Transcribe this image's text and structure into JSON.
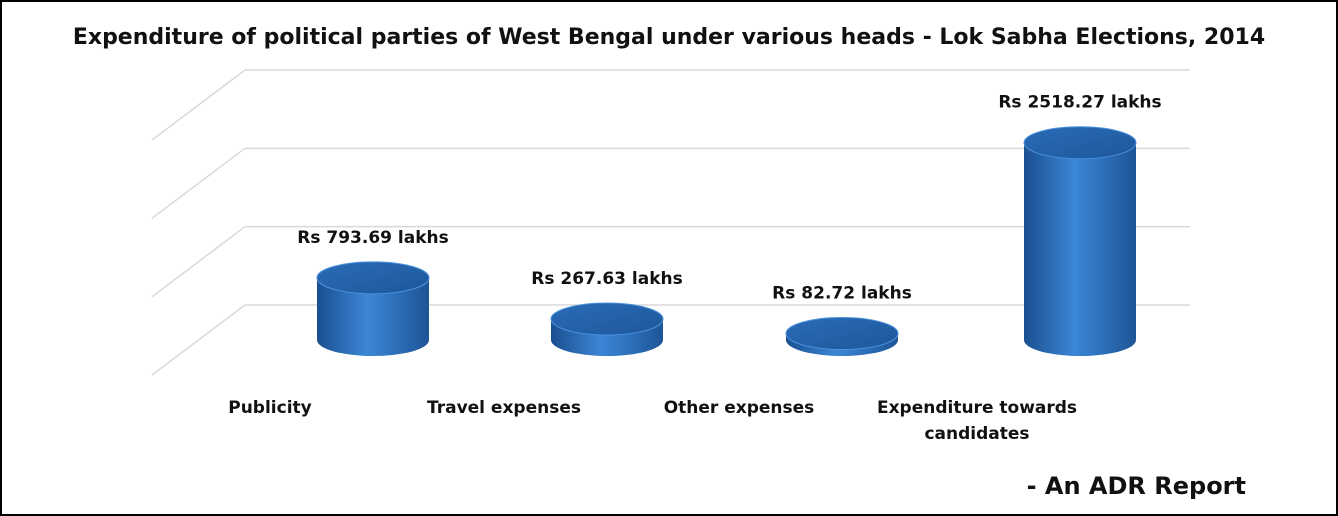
{
  "chart_data": {
    "type": "bar3d",
    "title": "Expenditure of political parties of West Bengal under various heads - Lok Sabha Elections,  2014",
    "categories": [
      "Publicity",
      "Travel expenses",
      "Other expenses",
      "Expenditure towards candidates"
    ],
    "values": [
      793.69,
      267.63,
      82.72,
      2518.27
    ],
    "value_labels": [
      "Rs 793.69 lakhs",
      "Rs 267.63 lakhs",
      "Rs 82.72 lakhs",
      "Rs 2518.27 lakhs"
    ],
    "color": "#2e75c6",
    "ylim": [
      0,
      3000
    ],
    "yticks": [
      0,
      1000,
      2000,
      3000
    ],
    "grid": true,
    "annotation": "- An ADR Report"
  }
}
